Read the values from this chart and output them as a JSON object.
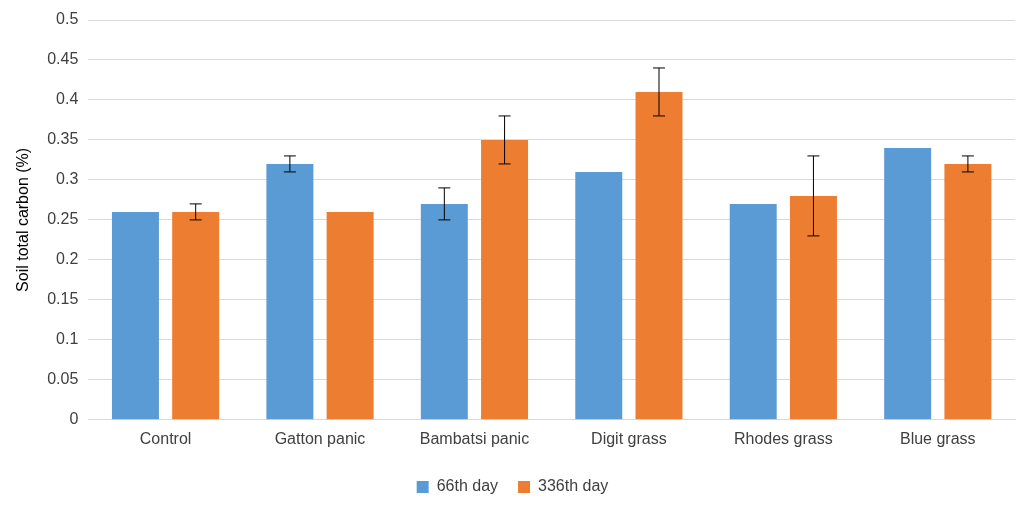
{
  "chart_data": {
    "type": "bar",
    "ylabel": "Soil total carbon (%)",
    "categories": [
      "Control",
      "Gatton panic",
      "Bambatsi panic",
      "Digit grass",
      "Rhodes grass",
      "Blue grass"
    ],
    "series": [
      {
        "name": "66th day",
        "color": "#5b9bd5",
        "values": [
          0.26,
          0.32,
          0.27,
          0.31,
          0.27,
          0.34
        ],
        "errors": [
          null,
          0.01,
          0.02,
          null,
          null,
          null
        ]
      },
      {
        "name": "336th day",
        "color": "#ed7d31",
        "values": [
          0.26,
          0.26,
          0.35,
          0.41,
          0.28,
          0.32
        ],
        "errors": [
          0.01,
          null,
          0.03,
          0.03,
          0.05,
          0.01
        ]
      }
    ],
    "ylim": [
      0,
      0.5
    ],
    "yticks": [
      0,
      0.05,
      0.1,
      0.15,
      0.2,
      0.25,
      0.3,
      0.35,
      0.4,
      0.45,
      0.5
    ],
    "grid": "y",
    "legend": "bottom"
  }
}
